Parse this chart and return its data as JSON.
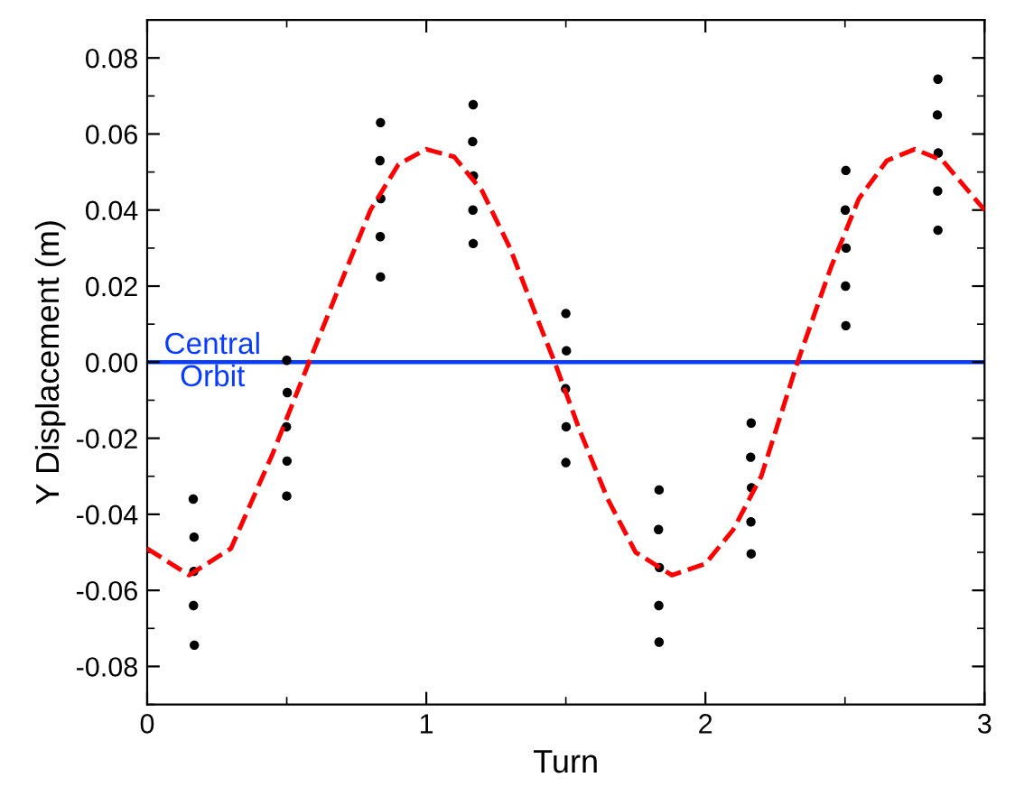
{
  "chart_data": {
    "type": "scatter",
    "xlabel": "Turn",
    "ylabel": "Y Displacement (m)",
    "xlim": [
      0,
      3
    ],
    "ylim": [
      -0.09,
      0.09
    ],
    "xticks": [
      0,
      1,
      2,
      3
    ],
    "yticks": [
      {
        "value": -0.08,
        "label": "-0.08"
      },
      {
        "value": -0.06,
        "label": "-0.06"
      },
      {
        "value": -0.04,
        "label": "-0.04"
      },
      {
        "value": -0.02,
        "label": "-0.02"
      },
      {
        "value": 0,
        "label": "0.00"
      },
      {
        "value": 0.02,
        "label": "0.02"
      },
      {
        "value": 0.04,
        "label": "0.04"
      },
      {
        "value": 0.06,
        "label": "0.06"
      },
      {
        "value": 0.08,
        "label": "0.08"
      }
    ],
    "grid": false,
    "ref_lines": [
      {
        "axis": "y",
        "value": 0,
        "label": "Central\nOrbit",
        "color": "#0a3cff",
        "line_style": "solid"
      }
    ],
    "series": [
      {
        "color": "#000000",
        "marker": "circle",
        "x": [
          0.165,
          0.168,
          0.167,
          0.166,
          0.169,
          0.5,
          0.502,
          0.499,
          0.501,
          0.5,
          0.836,
          0.834,
          0.837,
          0.835,
          0.836,
          1.168,
          1.166,
          1.169,
          1.167,
          1.168,
          1.5,
          1.502,
          1.499,
          1.501,
          1.5,
          1.834,
          1.832,
          1.835,
          1.833,
          1.834,
          2.164,
          2.162,
          2.165,
          2.163,
          2.164,
          2.503,
          2.501,
          2.504,
          2.502,
          2.503,
          2.833,
          2.831,
          2.834,
          2.832,
          2.833
        ],
        "values": [
          -0.036,
          -0.046,
          -0.055,
          -0.064,
          -0.0744,
          0.0005,
          -0.008,
          -0.017,
          -0.026,
          -0.0352,
          0.063,
          0.053,
          0.043,
          0.033,
          0.0224,
          0.0677,
          0.058,
          0.049,
          0.04,
          0.0312,
          0.0128,
          0.003,
          -0.007,
          -0.017,
          -0.0264,
          -0.0336,
          -0.044,
          -0.054,
          -0.064,
          -0.0736,
          -0.016,
          -0.025,
          -0.033,
          -0.042,
          -0.0504,
          0.0504,
          0.04,
          0.03,
          0.02,
          0.0096,
          0.0744,
          0.065,
          0.055,
          0.045,
          0.0347
        ]
      },
      {
        "type": "line",
        "color": "#ff0000",
        "line_style": "dashed",
        "marker": "none",
        "x": [
          0,
          0.15,
          0.3,
          0.45,
          0.58,
          0.7,
          0.8,
          0.9,
          1.0,
          1.1,
          1.2,
          1.3,
          1.4,
          1.46,
          1.55,
          1.65,
          1.75,
          1.88,
          2.0,
          2.1,
          2.2,
          2.33,
          2.45,
          2.55,
          2.65,
          2.75,
          2.85,
          3.0
        ],
        "values": [
          -0.049,
          -0.056,
          -0.049,
          -0.024,
          0,
          0.022,
          0.04,
          0.052,
          0.056,
          0.054,
          0.045,
          0.03,
          0.011,
          0,
          -0.018,
          -0.036,
          -0.05,
          -0.056,
          -0.053,
          -0.044,
          -0.03,
          0,
          0.025,
          0.043,
          0.053,
          0.056,
          0.053,
          0.04
        ]
      }
    ]
  }
}
